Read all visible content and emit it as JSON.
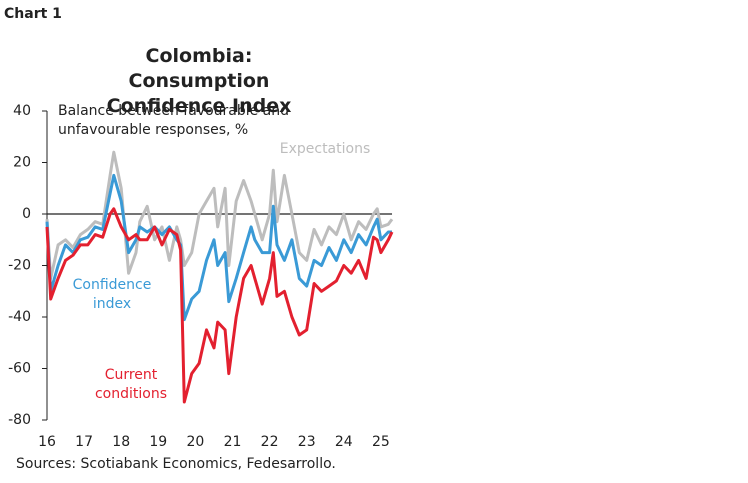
{
  "chart_data": {
    "type": "line",
    "label": "Chart 1",
    "title": "Colombia: Consumption Confidence Index",
    "y_axis_label": "Balance between favourable and unfavourable responses, %",
    "source": "Sources: Scotiabank Economics, Fedesarrollo.",
    "xlim": [
      16,
      25.4
    ],
    "xticks": [
      16,
      17,
      18,
      19,
      20,
      21,
      22,
      23,
      24,
      25
    ],
    "ylim": [
      -80,
      40
    ],
    "yticks": [
      -80,
      -60,
      -40,
      -20,
      0,
      20,
      40
    ],
    "x": [
      16.0,
      16.1,
      16.3,
      16.5,
      16.7,
      16.9,
      17.1,
      17.3,
      17.5,
      17.7,
      17.8,
      18.0,
      18.2,
      18.4,
      18.5,
      18.7,
      18.9,
      19.1,
      19.3,
      19.5,
      19.6,
      19.7,
      19.9,
      20.1,
      20.3,
      20.5,
      20.6,
      20.8,
      20.9,
      21.1,
      21.3,
      21.5,
      21.6,
      21.8,
      22.0,
      22.1,
      22.2,
      22.4,
      22.6,
      22.8,
      23.0,
      23.2,
      23.4,
      23.6,
      23.8,
      24.0,
      24.2,
      24.4,
      24.6,
      24.8,
      24.9,
      25.0,
      25.2,
      25.3
    ],
    "series": [
      {
        "name": "Expectations",
        "color": "#bdbdbd",
        "values": [
          -2,
          -25,
          -12,
          -10,
          -13,
          -8,
          -6,
          -3,
          -4,
          15,
          24,
          10,
          -23,
          -15,
          -3,
          3,
          -10,
          -5,
          -18,
          -5,
          -10,
          -20,
          -15,
          0,
          5,
          10,
          -5,
          10,
          -20,
          5,
          13,
          5,
          0,
          -10,
          0,
          17,
          -3,
          15,
          0,
          -15,
          -18,
          -6,
          -12,
          -5,
          -8,
          0,
          -10,
          -3,
          -6,
          0,
          2,
          -5,
          -4,
          -2
        ]
      },
      {
        "name": "Confidence index",
        "color": "#3a9ad6",
        "values": [
          -3,
          -30,
          -20,
          -12,
          -15,
          -10,
          -9,
          -5,
          -6,
          8,
          15,
          5,
          -15,
          -10,
          -5,
          -7,
          -5,
          -8,
          -5,
          -10,
          -12,
          -41,
          -33,
          -30,
          -18,
          -10,
          -20,
          -15,
          -34,
          -25,
          -15,
          -5,
          -10,
          -15,
          -15,
          3,
          -12,
          -18,
          -10,
          -25,
          -28,
          -18,
          -20,
          -13,
          -18,
          -10,
          -15,
          -8,
          -12,
          -5,
          -2,
          -10,
          -7,
          -7
        ]
      },
      {
        "name": "Current conditions",
        "color": "#e3202f",
        "values": [
          -5,
          -33,
          -25,
          -18,
          -16,
          -12,
          -12,
          -8,
          -9,
          0,
          2,
          -5,
          -10,
          -8,
          -10,
          -10,
          -5,
          -12,
          -6,
          -8,
          -14,
          -73,
          -62,
          -58,
          -45,
          -52,
          -42,
          -45,
          -62,
          -40,
          -25,
          -20,
          -25,
          -35,
          -25,
          -15,
          -32,
          -30,
          -40,
          -47,
          -45,
          -27,
          -30,
          -28,
          -26,
          -20,
          -23,
          -18,
          -25,
          -9,
          -10,
          -15,
          -10,
          -7
        ]
      }
    ]
  }
}
